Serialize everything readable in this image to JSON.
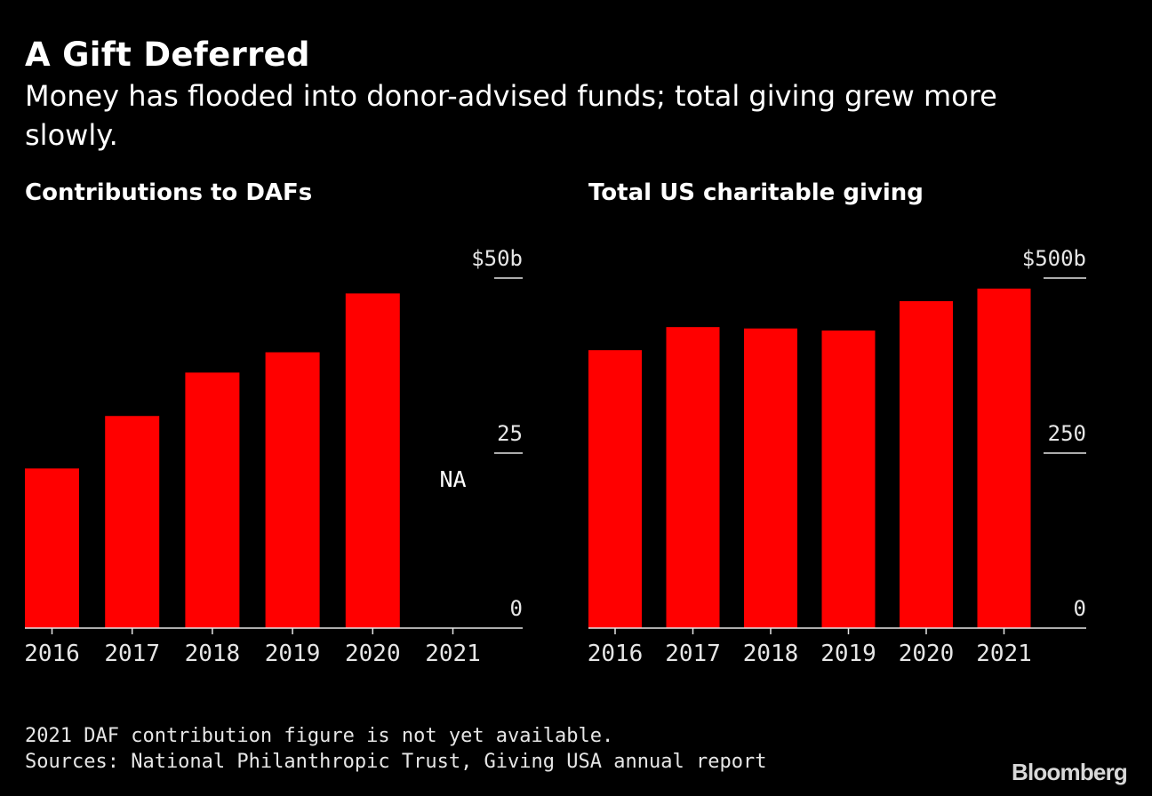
{
  "header": {
    "title": "A Gift Deferred",
    "subtitle": "Money has flooded into donor-advised funds; total giving grew more slowly."
  },
  "colors": {
    "background": "#000000",
    "bar": "#ff0000",
    "text": "#ffffff",
    "axis": "#e6e6e6"
  },
  "chart_data": [
    {
      "type": "bar",
      "title": "Contributions to DAFs",
      "categories": [
        "2016",
        "2017",
        "2018",
        "2019",
        "2020",
        "2021"
      ],
      "values": [
        22.8,
        30.3,
        36.5,
        39.4,
        47.8,
        null
      ],
      "missing_label": "NA",
      "ylim": [
        0,
        50
      ],
      "yticks": [
        {
          "value": 0,
          "label": "0"
        },
        {
          "value": 25,
          "label": "25"
        },
        {
          "value": 50,
          "label": "$50b"
        }
      ],
      "xlabel": "",
      "ylabel": ""
    },
    {
      "type": "bar",
      "title": "Total US charitable giving",
      "categories": [
        "2016",
        "2017",
        "2018",
        "2019",
        "2020",
        "2021"
      ],
      "values": [
        397,
        430,
        428,
        425,
        467,
        485
      ],
      "ylim": [
        0,
        500
      ],
      "yticks": [
        {
          "value": 0,
          "label": "0"
        },
        {
          "value": 250,
          "label": "250"
        },
        {
          "value": 500,
          "label": "$500b"
        }
      ],
      "xlabel": "",
      "ylabel": ""
    }
  ],
  "footer": {
    "note": "2021 DAF contribution figure is not yet available.",
    "sources": "Sources: National Philanthropic Trust, Giving USA annual report",
    "brand": "Bloomberg"
  }
}
